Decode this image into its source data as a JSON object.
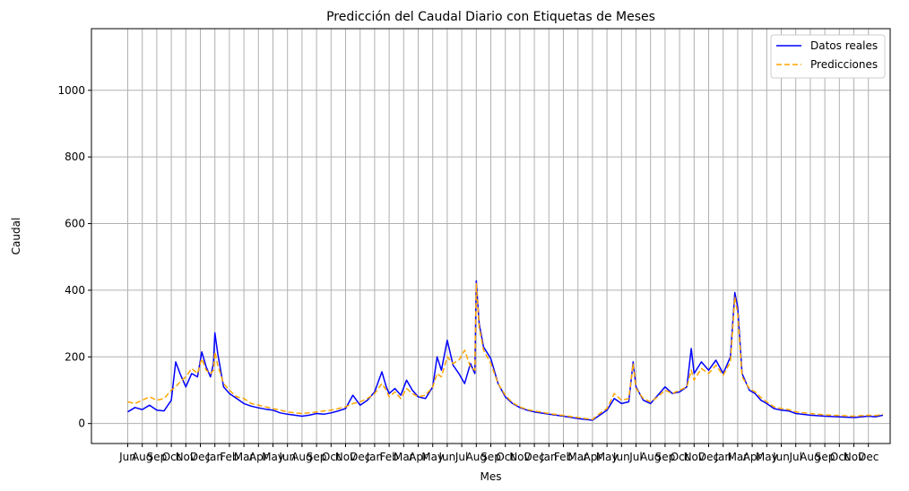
{
  "chart_data": {
    "type": "line",
    "title": "Predicción del Caudal Diario con Etiquetas de Meses",
    "xlabel": "Mes",
    "ylabel": "Caudal",
    "ylim": [
      -60,
      1185
    ],
    "yticks": [
      0,
      200,
      400,
      600,
      800,
      1000
    ],
    "xlim": [
      -2.5,
      52.5
    ],
    "grid": true,
    "legend_position": "top-right",
    "x_tick_labels": [
      "Jun",
      "Aug",
      "Sep",
      "Oct",
      "Nov",
      "Dec",
      "Jan",
      "Feb",
      "Mar",
      "Apr",
      "May",
      "Jun",
      "Aug",
      "Sep",
      "Oct",
      "Nov",
      "Dec",
      "Jan",
      "Feb",
      "Mar",
      "Apr",
      "May",
      "Jun",
      "Jul",
      "Aug",
      "Sep",
      "Oct",
      "Nov",
      "Dec",
      "Jan",
      "Feb",
      "Mar",
      "Apr",
      "May",
      "Jun",
      "Jul",
      "Aug",
      "Sep",
      "Oct",
      "Nov",
      "Dec",
      "Jan",
      "Mar",
      "Apr",
      "May",
      "Jun",
      "Jul",
      "Aug",
      "Sep",
      "Oct",
      "Nov",
      "Dec"
    ],
    "series": [
      {
        "name": "Datos reales",
        "color": "#0000ff",
        "dash": "solid",
        "points": [
          [
            0,
            35
          ],
          [
            0.5,
            48
          ],
          [
            1,
            42
          ],
          [
            1.5,
            55
          ],
          [
            2,
            40
          ],
          [
            2.5,
            38
          ],
          [
            3,
            70
          ],
          [
            3.3,
            185
          ],
          [
            3.6,
            150
          ],
          [
            4,
            110
          ],
          [
            4.4,
            150
          ],
          [
            4.8,
            140
          ],
          [
            5.1,
            215
          ],
          [
            5.4,
            170
          ],
          [
            5.7,
            140
          ],
          [
            5.9,
            180
          ],
          [
            6,
            272
          ],
          [
            6.2,
            210
          ],
          [
            6.6,
            110
          ],
          [
            7,
            90
          ],
          [
            7.5,
            75
          ],
          [
            8,
            60
          ],
          [
            8.5,
            52
          ],
          [
            9,
            47
          ],
          [
            9.5,
            43
          ],
          [
            10,
            40
          ],
          [
            10.5,
            32
          ],
          [
            11,
            28
          ],
          [
            11.5,
            25
          ],
          [
            12,
            22
          ],
          [
            12.5,
            25
          ],
          [
            13,
            30
          ],
          [
            13.5,
            28
          ],
          [
            14,
            32
          ],
          [
            14.5,
            38
          ],
          [
            15,
            45
          ],
          [
            15.5,
            85
          ],
          [
            16,
            55
          ],
          [
            16.5,
            70
          ],
          [
            17,
            95
          ],
          [
            17.5,
            155
          ],
          [
            17.8,
            110
          ],
          [
            18,
            90
          ],
          [
            18.4,
            105
          ],
          [
            18.8,
            85
          ],
          [
            19.2,
            130
          ],
          [
            19.6,
            100
          ],
          [
            20,
            80
          ],
          [
            20.5,
            75
          ],
          [
            21,
            110
          ],
          [
            21.3,
            200
          ],
          [
            21.6,
            160
          ],
          [
            22,
            250
          ],
          [
            22.4,
            175
          ],
          [
            22.8,
            150
          ],
          [
            23.2,
            120
          ],
          [
            23.6,
            180
          ],
          [
            23.9,
            150
          ],
          [
            24,
            428
          ],
          [
            24.2,
            300
          ],
          [
            24.5,
            230
          ],
          [
            25,
            195
          ],
          [
            25.5,
            120
          ],
          [
            26,
            80
          ],
          [
            26.5,
            60
          ],
          [
            27,
            48
          ],
          [
            27.5,
            40
          ],
          [
            28,
            35
          ],
          [
            29,
            28
          ],
          [
            30,
            22
          ],
          [
            31,
            15
          ],
          [
            32,
            10
          ],
          [
            32.5,
            25
          ],
          [
            33,
            40
          ],
          [
            33.5,
            75
          ],
          [
            34,
            60
          ],
          [
            34.5,
            65
          ],
          [
            34.8,
            185
          ],
          [
            35,
            110
          ],
          [
            35.5,
            70
          ],
          [
            36,
            60
          ],
          [
            36.5,
            85
          ],
          [
            37,
            110
          ],
          [
            37.5,
            90
          ],
          [
            38,
            95
          ],
          [
            38.5,
            110
          ],
          [
            38.8,
            225
          ],
          [
            39,
            150
          ],
          [
            39.5,
            185
          ],
          [
            40,
            160
          ],
          [
            40.5,
            190
          ],
          [
            41,
            150
          ],
          [
            41.5,
            200
          ],
          [
            41.8,
            393
          ],
          [
            42,
            350
          ],
          [
            42.3,
            150
          ],
          [
            42.8,
            100
          ],
          [
            43.2,
            90
          ],
          [
            43.6,
            70
          ],
          [
            44,
            60
          ],
          [
            44.5,
            45
          ],
          [
            45,
            40
          ],
          [
            45.5,
            38
          ],
          [
            46,
            30
          ],
          [
            47,
            25
          ],
          [
            48,
            22
          ],
          [
            49,
            20
          ],
          [
            50,
            18
          ],
          [
            51,
            22
          ],
          [
            51.5,
            20
          ],
          [
            52,
            25
          ]
        ]
      },
      {
        "name": "Predicciones",
        "color": "#ffa500",
        "dash": "dashed",
        "points": [
          [
            0,
            65
          ],
          [
            0.5,
            60
          ],
          [
            1,
            70
          ],
          [
            1.5,
            80
          ],
          [
            2,
            70
          ],
          [
            2.5,
            75
          ],
          [
            3,
            100
          ],
          [
            3.3,
            110
          ],
          [
            3.6,
            125
          ],
          [
            4,
            140
          ],
          [
            4.4,
            165
          ],
          [
            4.8,
            150
          ],
          [
            5.1,
            195
          ],
          [
            5.4,
            160
          ],
          [
            5.7,
            150
          ],
          [
            5.9,
            160
          ],
          [
            6,
            215
          ],
          [
            6.2,
            175
          ],
          [
            6.6,
            120
          ],
          [
            7,
            100
          ],
          [
            7.5,
            80
          ],
          [
            8,
            75
          ],
          [
            8.5,
            60
          ],
          [
            9,
            55
          ],
          [
            9.5,
            50
          ],
          [
            10,
            45
          ],
          [
            10.5,
            40
          ],
          [
            11,
            35
          ],
          [
            11.5,
            32
          ],
          [
            12,
            30
          ],
          [
            12.5,
            32
          ],
          [
            13,
            35
          ],
          [
            13.5,
            38
          ],
          [
            14,
            40
          ],
          [
            14.5,
            45
          ],
          [
            15,
            50
          ],
          [
            15.5,
            60
          ],
          [
            16,
            65
          ],
          [
            16.5,
            75
          ],
          [
            17,
            90
          ],
          [
            17.5,
            120
          ],
          [
            17.8,
            100
          ],
          [
            18,
            80
          ],
          [
            18.4,
            95
          ],
          [
            18.8,
            75
          ],
          [
            19.2,
            105
          ],
          [
            19.6,
            90
          ],
          [
            20,
            80
          ],
          [
            20.5,
            85
          ],
          [
            21,
            110
          ],
          [
            21.3,
            150
          ],
          [
            21.6,
            140
          ],
          [
            22,
            200
          ],
          [
            22.4,
            180
          ],
          [
            22.8,
            190
          ],
          [
            23.2,
            220
          ],
          [
            23.6,
            170
          ],
          [
            23.9,
            160
          ],
          [
            24,
            420
          ],
          [
            24.2,
            290
          ],
          [
            24.5,
            220
          ],
          [
            25,
            180
          ],
          [
            25.5,
            120
          ],
          [
            26,
            85
          ],
          [
            26.5,
            62
          ],
          [
            27,
            50
          ],
          [
            27.5,
            42
          ],
          [
            28,
            38
          ],
          [
            29,
            30
          ],
          [
            30,
            24
          ],
          [
            31,
            18
          ],
          [
            32,
            12
          ],
          [
            32.5,
            30
          ],
          [
            33,
            45
          ],
          [
            33.5,
            90
          ],
          [
            34,
            70
          ],
          [
            34.5,
            75
          ],
          [
            34.8,
            180
          ],
          [
            35,
            105
          ],
          [
            35.5,
            75
          ],
          [
            36,
            65
          ],
          [
            36.5,
            80
          ],
          [
            37,
            100
          ],
          [
            37.5,
            90
          ],
          [
            38,
            100
          ],
          [
            38.5,
            110
          ],
          [
            38.8,
            160
          ],
          [
            39,
            130
          ],
          [
            39.5,
            165
          ],
          [
            40,
            150
          ],
          [
            40.5,
            175
          ],
          [
            41,
            145
          ],
          [
            41.5,
            185
          ],
          [
            41.8,
            380
          ],
          [
            42,
            330
          ],
          [
            42.3,
            140
          ],
          [
            42.8,
            105
          ],
          [
            43.2,
            95
          ],
          [
            43.6,
            78
          ],
          [
            44,
            65
          ],
          [
            44.5,
            50
          ],
          [
            45,
            45
          ],
          [
            45.5,
            42
          ],
          [
            46,
            35
          ],
          [
            47,
            30
          ],
          [
            48,
            26
          ],
          [
            49,
            24
          ],
          [
            50,
            22
          ],
          [
            51,
            25
          ],
          [
            51.5,
            24
          ],
          [
            52,
            28
          ]
        ]
      }
    ]
  }
}
